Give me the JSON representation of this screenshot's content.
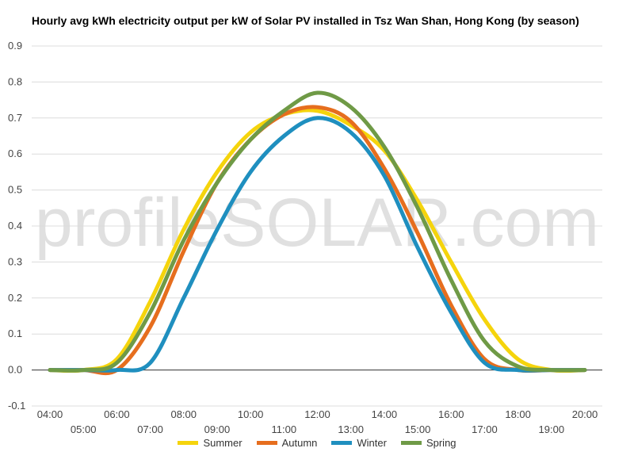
{
  "chart_data": {
    "type": "line",
    "title": "Hourly avg kWh electricity output per kW of Solar PV installed in Tsz Wan Shan, Hong Kong (by season)",
    "xlabel": "",
    "ylabel": "",
    "x": [
      "04:00",
      "05:00",
      "06:00",
      "07:00",
      "08:00",
      "09:00",
      "10:00",
      "11:00",
      "12:00",
      "13:00",
      "14:00",
      "15:00",
      "16:00",
      "17:00",
      "18:00",
      "19:00",
      "20:00"
    ],
    "ylim": [
      -0.1,
      0.9
    ],
    "yticks": [
      "-0.1",
      "0.0",
      "0.1",
      "0.2",
      "0.3",
      "0.4",
      "0.5",
      "0.6",
      "0.7",
      "0.8",
      "0.9"
    ],
    "grid": true,
    "legend": "bottom",
    "watermark": "profileSOLAR.com",
    "series": [
      {
        "name": "Summer",
        "color": "#f5d40c",
        "values": [
          0.0,
          0.0,
          0.03,
          0.19,
          0.39,
          0.55,
          0.66,
          0.71,
          0.72,
          0.68,
          0.61,
          0.47,
          0.3,
          0.14,
          0.03,
          0.0,
          0.0
        ]
      },
      {
        "name": "Autumn",
        "color": "#e66e1e",
        "values": [
          0.0,
          0.0,
          0.0,
          0.12,
          0.33,
          0.52,
          0.64,
          0.71,
          0.73,
          0.69,
          0.56,
          0.38,
          0.18,
          0.03,
          0.0,
          0.0,
          0.0
        ]
      },
      {
        "name": "Winter",
        "color": "#1f8fbf",
        "values": [
          0.0,
          0.0,
          0.0,
          0.02,
          0.2,
          0.39,
          0.55,
          0.65,
          0.7,
          0.66,
          0.54,
          0.34,
          0.16,
          0.02,
          0.0,
          0.0,
          0.0
        ]
      },
      {
        "name": "Spring",
        "color": "#6f9a46",
        "values": [
          0.0,
          0.0,
          0.02,
          0.16,
          0.36,
          0.52,
          0.64,
          0.72,
          0.77,
          0.73,
          0.62,
          0.45,
          0.25,
          0.08,
          0.01,
          0.0,
          0.0
        ]
      }
    ]
  }
}
